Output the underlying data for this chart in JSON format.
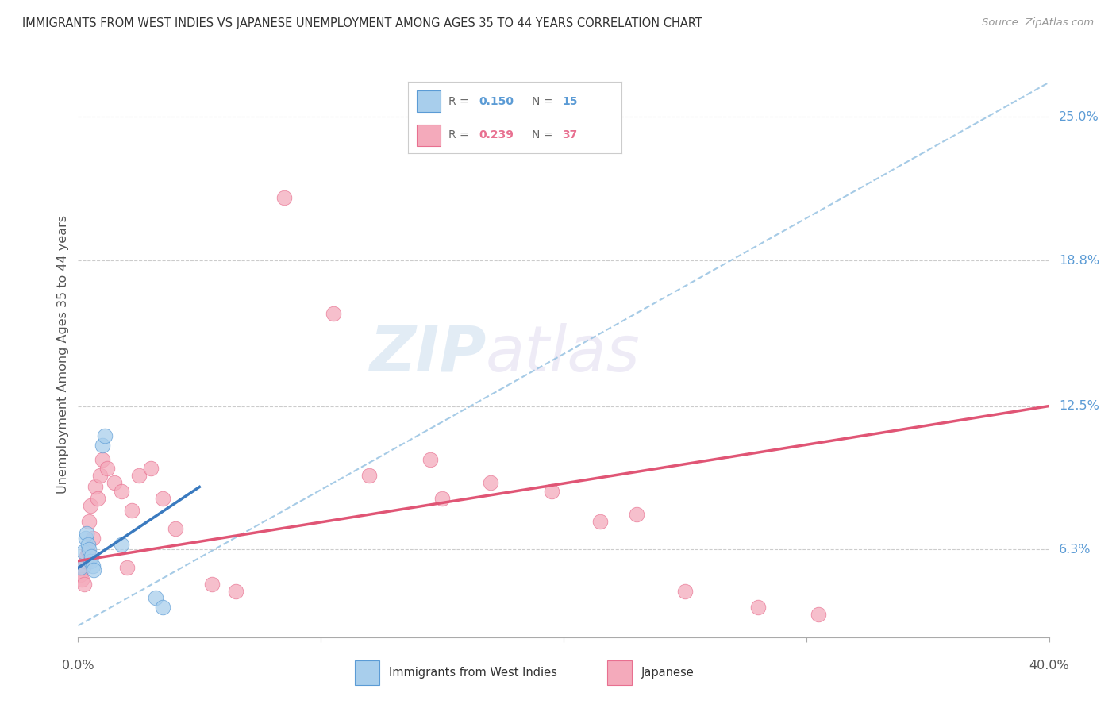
{
  "title": "IMMIGRANTS FROM WEST INDIES VS JAPANESE UNEMPLOYMENT AMONG AGES 35 TO 44 YEARS CORRELATION CHART",
  "source": "Source: ZipAtlas.com",
  "ylabel": "Unemployment Among Ages 35 to 44 years",
  "ytick_values": [
    6.3,
    12.5,
    18.8,
    25.0
  ],
  "xlim": [
    0.0,
    40.0
  ],
  "ylim": [
    2.5,
    27.0
  ],
  "legend_r1": "0.150",
  "legend_n1": "15",
  "legend_r2": "0.239",
  "legend_n2": "37",
  "color_blue_fill": "#A8CEEC",
  "color_pink_fill": "#F4AABB",
  "color_blue_edge": "#5B9BD5",
  "color_pink_edge": "#E87090",
  "color_blue_line": "#3A7ABF",
  "color_pink_line": "#E05575",
  "color_dashed": "#90BEE0",
  "background_color": "#FFFFFF",
  "watermark_zip": "ZIP",
  "watermark_atlas": "atlas",
  "blue_points_x": [
    0.1,
    0.2,
    0.3,
    0.35,
    0.4,
    0.45,
    0.5,
    0.55,
    0.6,
    0.65,
    1.0,
    1.1,
    1.8,
    3.2,
    3.5
  ],
  "blue_points_y": [
    5.5,
    6.2,
    6.8,
    7.0,
    6.5,
    6.3,
    5.8,
    6.0,
    5.6,
    5.4,
    10.8,
    11.2,
    6.5,
    4.2,
    3.8
  ],
  "pink_points_x": [
    0.1,
    0.15,
    0.2,
    0.25,
    0.3,
    0.35,
    0.4,
    0.45,
    0.5,
    0.6,
    0.7,
    0.8,
    0.9,
    1.0,
    1.2,
    1.5,
    1.8,
    2.0,
    2.2,
    2.5,
    3.0,
    3.5,
    4.0,
    5.5,
    6.5,
    8.5,
    10.5,
    12.0,
    14.5,
    15.0,
    17.0,
    19.5,
    21.5,
    23.0,
    25.0,
    28.0,
    30.5
  ],
  "pink_points_y": [
    5.2,
    5.0,
    5.5,
    4.8,
    5.8,
    6.0,
    6.2,
    7.5,
    8.2,
    6.8,
    9.0,
    8.5,
    9.5,
    10.2,
    9.8,
    9.2,
    8.8,
    5.5,
    8.0,
    9.5,
    9.8,
    8.5,
    7.2,
    4.8,
    4.5,
    21.5,
    16.5,
    9.5,
    10.2,
    8.5,
    9.2,
    8.8,
    7.5,
    7.8,
    4.5,
    3.8,
    3.5
  ],
  "pink_line_x0": 0.0,
  "pink_line_y0": 5.8,
  "pink_line_x1": 40.0,
  "pink_line_y1": 12.5,
  "blue_line_x0": 0.0,
  "blue_line_y0": 5.5,
  "blue_line_x1": 5.0,
  "blue_line_y1": 9.0,
  "dashed_line_x0": 0.0,
  "dashed_line_y0": 3.0,
  "dashed_line_x1": 40.0,
  "dashed_line_y1": 26.5
}
